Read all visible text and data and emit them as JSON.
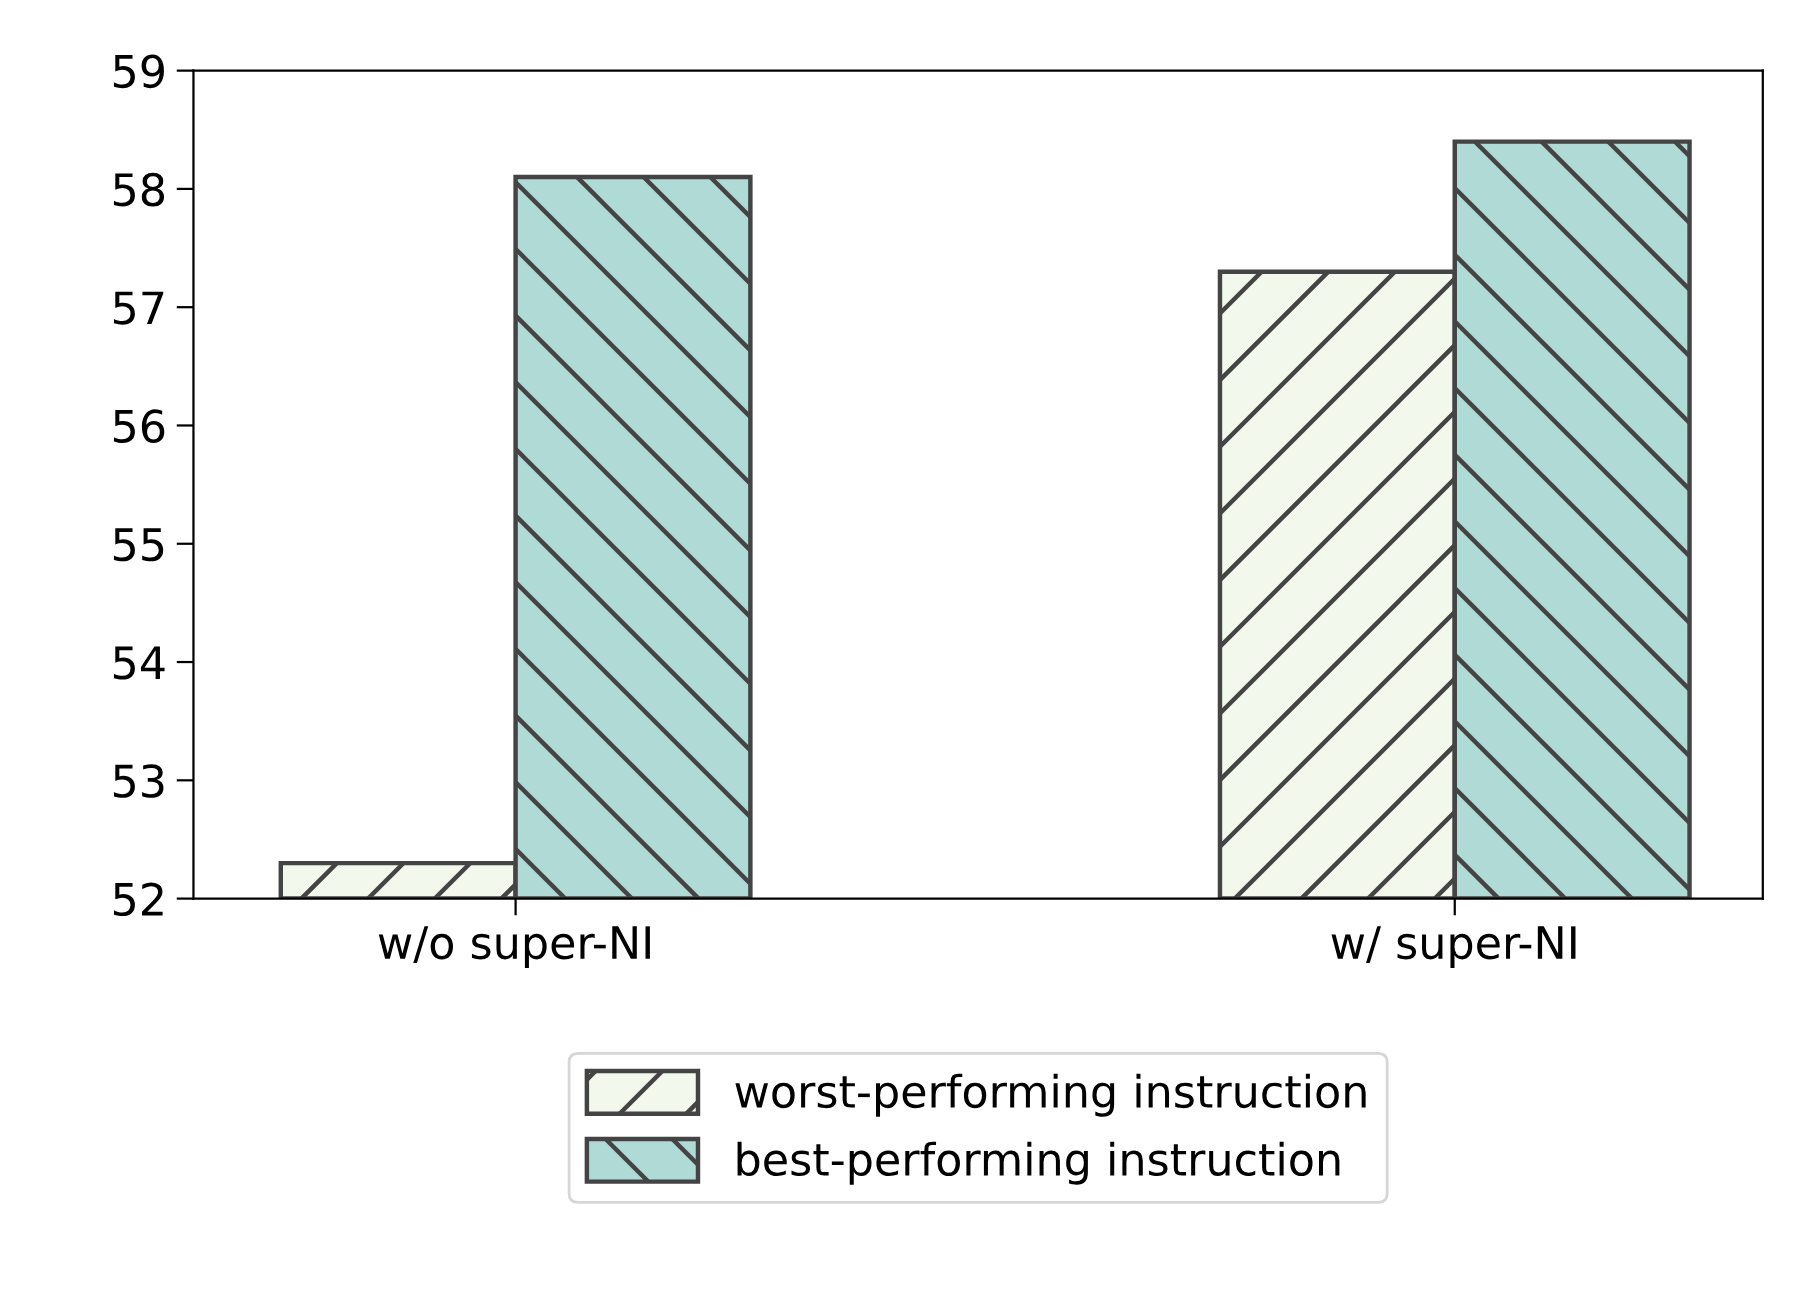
{
  "chart_data": {
    "type": "bar",
    "categories": [
      "w/o super-NI",
      "w/ super-NI"
    ],
    "series": [
      {
        "name": "worst-performing instruction",
        "color": "#f2f8ec",
        "values": [
          52.3,
          57.3
        ]
      },
      {
        "name": "best-performing instruction",
        "color": "#b0dad6",
        "values": [
          58.1,
          58.4
        ]
      }
    ],
    "ylim": [
      52,
      59
    ],
    "yticks": [
      52,
      53,
      54,
      55,
      56,
      57,
      58,
      59
    ],
    "grid": false,
    "legend": "bottom"
  }
}
